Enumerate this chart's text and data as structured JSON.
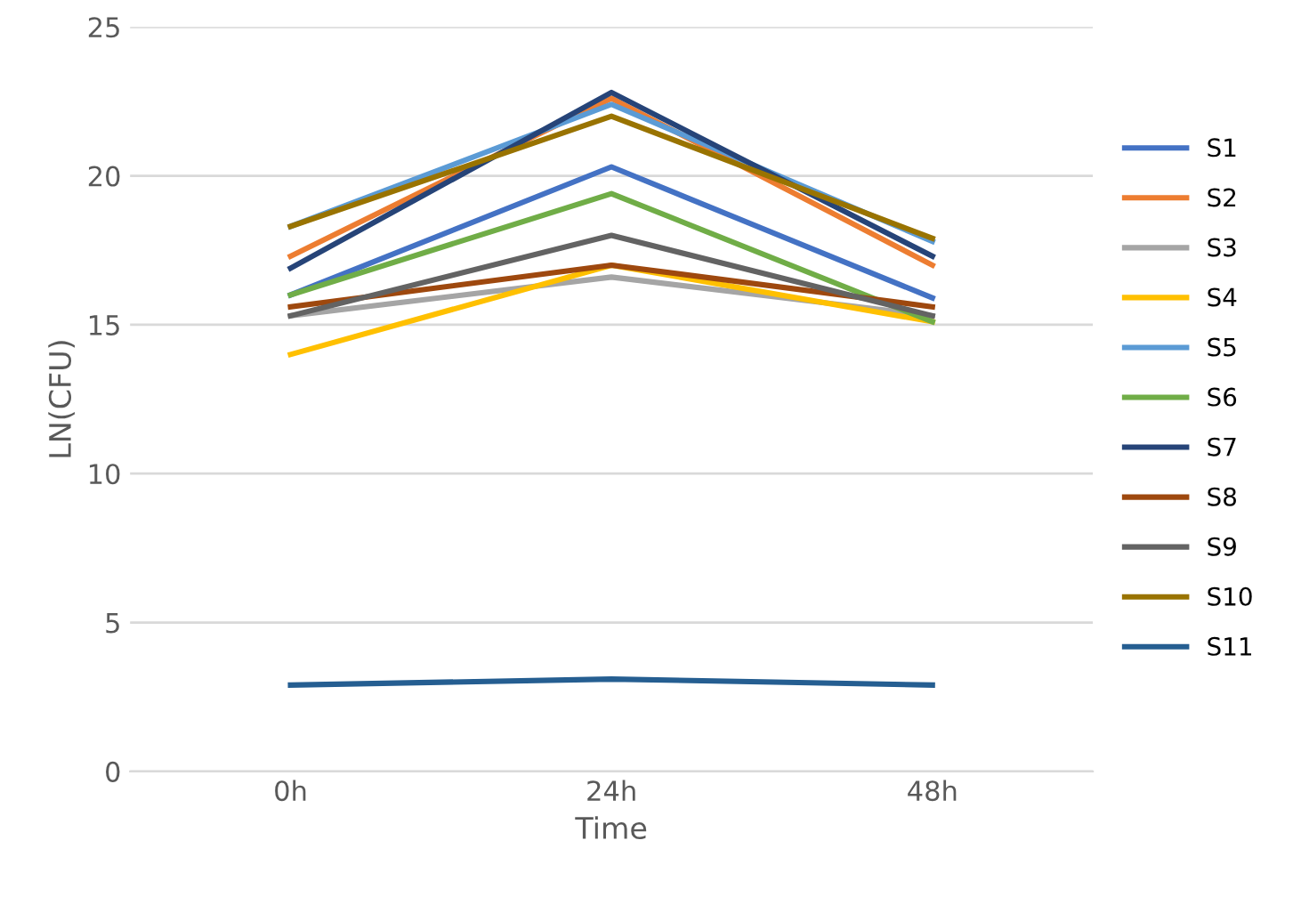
{
  "chart_data": {
    "type": "line",
    "xlabel": "Time",
    "ylabel": "LN(CFU)",
    "categories": [
      "0h",
      "24h",
      "48h"
    ],
    "ylim": [
      0,
      25
    ],
    "yticks": [
      0,
      5,
      10,
      15,
      20,
      25
    ],
    "grid": "y",
    "legend": "right",
    "marker": "none",
    "line_style": "solid",
    "series": [
      {
        "name": "S1",
        "color": "#4472c4",
        "values": [
          16.0,
          20.3,
          15.9
        ]
      },
      {
        "name": "S2",
        "color": "#ed7d31",
        "values": [
          17.3,
          22.6,
          17.0
        ]
      },
      {
        "name": "S3",
        "color": "#a5a5a5",
        "values": [
          15.3,
          16.6,
          15.3
        ]
      },
      {
        "name": "S4",
        "color": "#ffc000",
        "values": [
          14.0,
          17.0,
          15.1
        ]
      },
      {
        "name": "S5",
        "color": "#5b9bd5",
        "values": [
          18.3,
          22.4,
          17.8
        ]
      },
      {
        "name": "S6",
        "color": "#70ad47",
        "values": [
          16.0,
          19.4,
          15.1
        ]
      },
      {
        "name": "S7",
        "color": "#264478",
        "values": [
          16.9,
          22.8,
          17.3
        ]
      },
      {
        "name": "S8",
        "color": "#9e480e",
        "values": [
          15.6,
          17.0,
          15.6
        ]
      },
      {
        "name": "S9",
        "color": "#636363",
        "values": [
          15.3,
          18.0,
          15.3
        ]
      },
      {
        "name": "S10",
        "color": "#997300",
        "values": [
          18.3,
          22.0,
          17.9
        ]
      },
      {
        "name": "S11",
        "color": "#255e91",
        "values": [
          2.9,
          3.1,
          2.9
        ]
      }
    ]
  }
}
